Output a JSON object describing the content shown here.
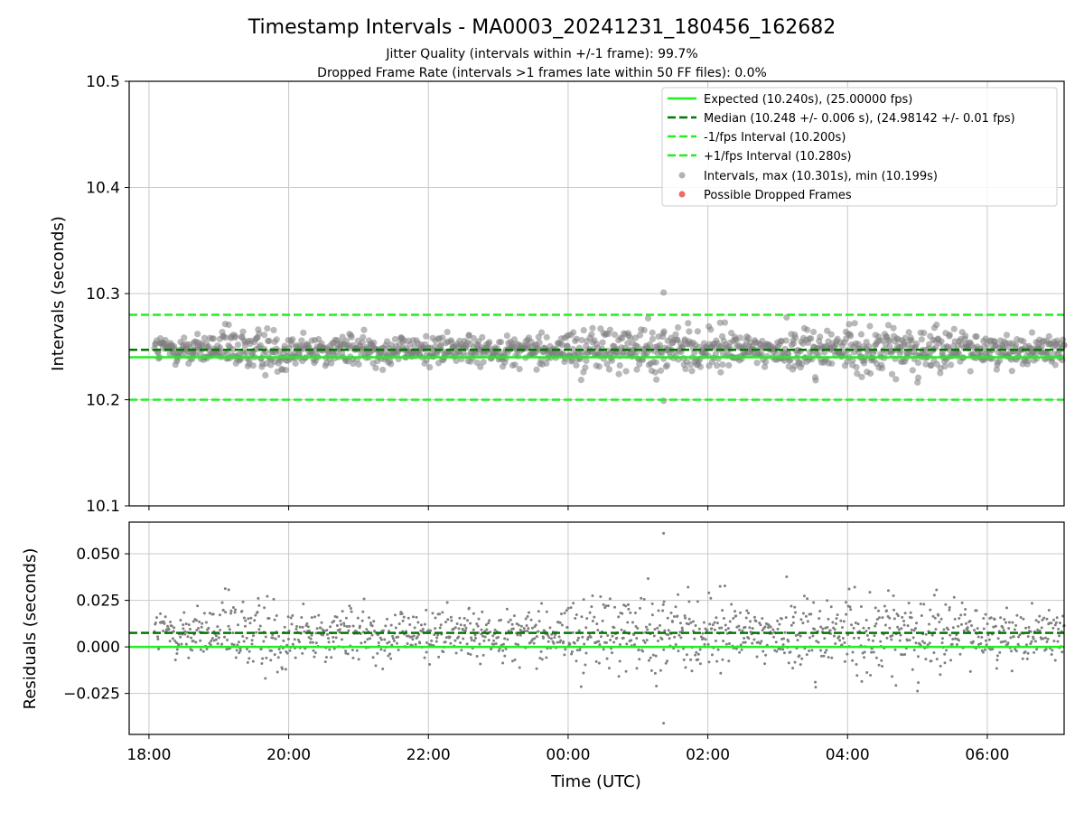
{
  "figure": {
    "title": "Timestamp Intervals - MA0003_20241231_180456_162682",
    "subtitle_lines": [
      "Jitter Quality (intervals within +/-1 frame): 99.7%",
      "Dropped Frame Rate (intervals >1 frames late within 50 FF files): 0.0%"
    ]
  },
  "colors": {
    "expected": "#22ee22",
    "median": "#007700",
    "fps_interval": "#22ee22",
    "intervals_points": "#808080",
    "dropped": "#ee4444",
    "grid": "#c8c8c8"
  },
  "chart_data": [
    {
      "type": "scatter",
      "ylabel": "Intervals (seconds)",
      "xlabel": "",
      "ylim": [
        10.1,
        10.5
      ],
      "yticks": [
        "10.1",
        "10.2",
        "10.3",
        "10.4",
        "10.5"
      ],
      "x_range_utc": [
        "17:43",
        "07:06"
      ],
      "xticks": [
        "18:00",
        "20:00",
        "22:00",
        "00:00",
        "02:00",
        "04:00",
        "06:00"
      ],
      "grid": true,
      "legend_position": "upper right",
      "reference_lines": [
        {
          "name": "Expected (10.240s), (25.00000 fps)",
          "y": 10.24,
          "style": "solid",
          "color_key": "expected"
        },
        {
          "name": "Median (10.248 +/- 0.006 s), (24.98142 +/- 0.01 fps)",
          "y": 10.247,
          "style": "dashed",
          "color_key": "median"
        },
        {
          "name": "-1/fps Interval (10.200s)",
          "y": 10.2,
          "style": "dashed",
          "color_key": "fps_interval"
        },
        {
          "name": "+1/fps Interval (10.280s)",
          "y": 10.28,
          "style": "dashed",
          "color_key": "fps_interval"
        }
      ],
      "series": [
        {
          "name": "Intervals, max (10.301s), min (10.199s)",
          "marker": "circle",
          "color_key": "intervals_points",
          "x_start_utc": "18:05",
          "x_end_utc": "07:06",
          "max": 10.301,
          "min": 10.199,
          "center": 10.247,
          "spread_sd": 0.0085
        },
        {
          "name": "Possible Dropped Frames",
          "marker": "circle",
          "color_key": "dropped",
          "points": []
        }
      ]
    },
    {
      "type": "scatter",
      "ylabel": "Residuals (seconds)",
      "xlabel": "Time (UTC)",
      "ylim": [
        -0.047,
        0.067
      ],
      "yticks": [
        "−0.025",
        "0.000",
        "0.025",
        "0.050"
      ],
      "ytick_values": [
        -0.025,
        0.0,
        0.025,
        0.05
      ],
      "xticks": [
        "18:00",
        "20:00",
        "22:00",
        "00:00",
        "02:00",
        "04:00",
        "06:00"
      ],
      "grid": true,
      "reference_lines": [
        {
          "y": 0.0,
          "style": "solid",
          "color_key": "expected"
        },
        {
          "y": 0.0075,
          "style": "dashed",
          "color_key": "median"
        }
      ],
      "series": [
        {
          "marker": "dot",
          "color_key": "intervals_points",
          "max": 0.061,
          "min": -0.041,
          "center": 0.0075,
          "spread_sd": 0.0085
        }
      ]
    }
  ]
}
